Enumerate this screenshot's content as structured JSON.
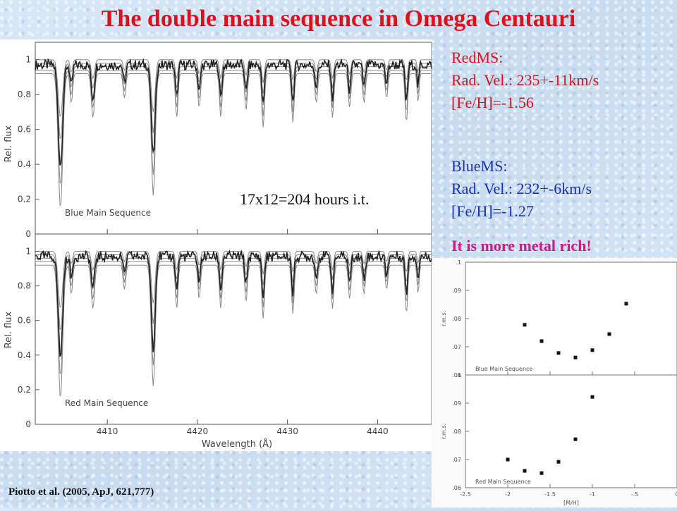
{
  "title": "The double main sequence in Omega Centauri",
  "spectra": {
    "y_label": "Rel. flux",
    "x_label": "Wavelength (Å)",
    "x_ticks": [
      "4410",
      "4420",
      "4430",
      "4440"
    ],
    "y_ticks": [
      "0",
      "0.2",
      "0.4",
      "0.6",
      "0.8",
      "1"
    ],
    "top_label": "Blue Main Sequence",
    "bottom_label": "Red Main Sequence"
  },
  "integration_note": "17x12=204 hours i.t.",
  "red_ms": {
    "label": "RedMS:",
    "rad_vel": "Rad. Vel.: 235+-11km/s",
    "feh": "[Fe/H]=-1.56"
  },
  "blue_ms": {
    "label": "BlueMS:",
    "rad_vel": "Rad. Vel.: 232+-6km/s",
    "feh": "[Fe/H]=-1.27"
  },
  "conclusion": "It is more metal rich!",
  "reference": "Piotto et al. (2005, ApJ, 621,777)",
  "chart_data": [
    {
      "type": "scatter",
      "label": "Blue Main Sequence",
      "xlabel": "[M/H]",
      "ylabel": "r.m.s.",
      "xlim": [
        -2.5,
        0
      ],
      "ylim": [
        0.06,
        0.1
      ],
      "x_ticks": [
        "-2.5",
        "-2",
        "-1.5",
        "-1",
        "-.5",
        "0"
      ],
      "y_ticks": [
        ".06",
        ".07",
        ".08",
        ".09",
        ".1"
      ],
      "x": [
        -1.8,
        -1.6,
        -1.4,
        -1.2,
        -1.0,
        -0.8,
        -0.6
      ],
      "y": [
        0.0778,
        0.072,
        0.0678,
        0.0662,
        0.0688,
        0.0745,
        0.0853
      ]
    },
    {
      "type": "scatter",
      "label": "Red Main Sequence",
      "xlabel": "[M/H]",
      "ylabel": "r.m.s.",
      "xlim": [
        -2.5,
        0
      ],
      "ylim": [
        0.06,
        0.1
      ],
      "x_ticks": [
        "-2.5",
        "-2",
        "-1.5",
        "-1",
        "-.5",
        "0"
      ],
      "y_ticks": [
        ".06",
        ".07",
        ".08",
        ".09",
        ".1"
      ],
      "x": [
        -2.0,
        -1.8,
        -1.6,
        -1.4,
        -1.2,
        -1.0
      ],
      "y": [
        0.07,
        0.066,
        0.0652,
        0.0692,
        0.0772,
        0.0922
      ]
    }
  ]
}
